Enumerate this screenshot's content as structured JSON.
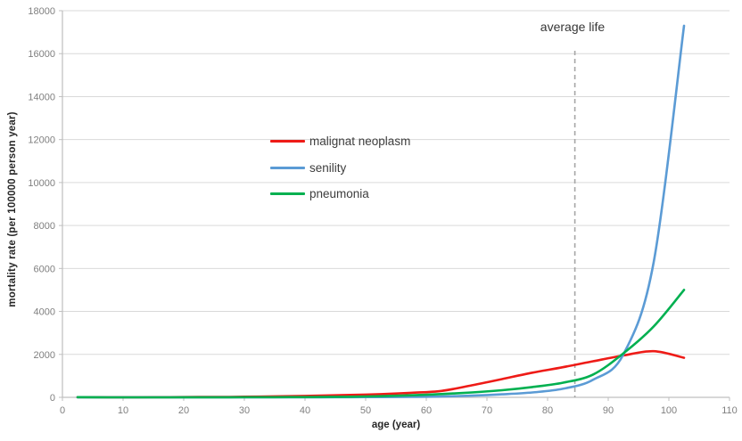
{
  "chart_data": {
    "type": "line",
    "title": "",
    "xlabel": "age (year)",
    "ylabel": "mortality rate (per 100000 person year)",
    "xlim": [
      0,
      110
    ],
    "ylim": [
      0,
      18000
    ],
    "x_ticks": [
      0,
      10,
      20,
      30,
      40,
      50,
      60,
      70,
      80,
      90,
      100,
      110
    ],
    "y_ticks": [
      0,
      2000,
      4000,
      6000,
      8000,
      10000,
      12000,
      14000,
      16000,
      18000
    ],
    "grid": "horizontal",
    "legend_position": "inside-center-left",
    "annotation": {
      "label": "average life",
      "x": 84.5,
      "style": "dashed-vertical-line"
    },
    "x": [
      2.5,
      7.5,
      12.5,
      17.5,
      22.5,
      27.5,
      32.5,
      37.5,
      42.5,
      47.5,
      52.5,
      57.5,
      62.5,
      67.5,
      72.5,
      77.5,
      82.5,
      87.5,
      92.5,
      97.5,
      102.5
    ],
    "series": [
      {
        "name": "malignat neoplasm",
        "color": "#ee1b17",
        "values": [
          8,
          6,
          6,
          10,
          15,
          22,
          35,
          55,
          80,
          110,
          150,
          210,
          300,
          560,
          850,
          1150,
          1400,
          1680,
          1950,
          2150,
          1840
        ]
      },
      {
        "name": "senility",
        "color": "#5b9bd5",
        "values": [
          2,
          1,
          1,
          1,
          1,
          2,
          2,
          3,
          5,
          8,
          13,
          22,
          40,
          80,
          140,
          230,
          400,
          820,
          2000,
          6300,
          17300
        ]
      },
      {
        "name": "pneumonia",
        "color": "#00b050",
        "values": [
          10,
          2,
          2,
          2,
          3,
          5,
          8,
          12,
          18,
          30,
          55,
          95,
          155,
          230,
          330,
          480,
          680,
          1060,
          2050,
          3300,
          5000
        ]
      }
    ]
  },
  "colors": {
    "gridline": "#d9d9d9",
    "axis": "#bfbfbf",
    "tick_text": "#7f7f7f",
    "annotation_line": "#a6a6a6"
  }
}
